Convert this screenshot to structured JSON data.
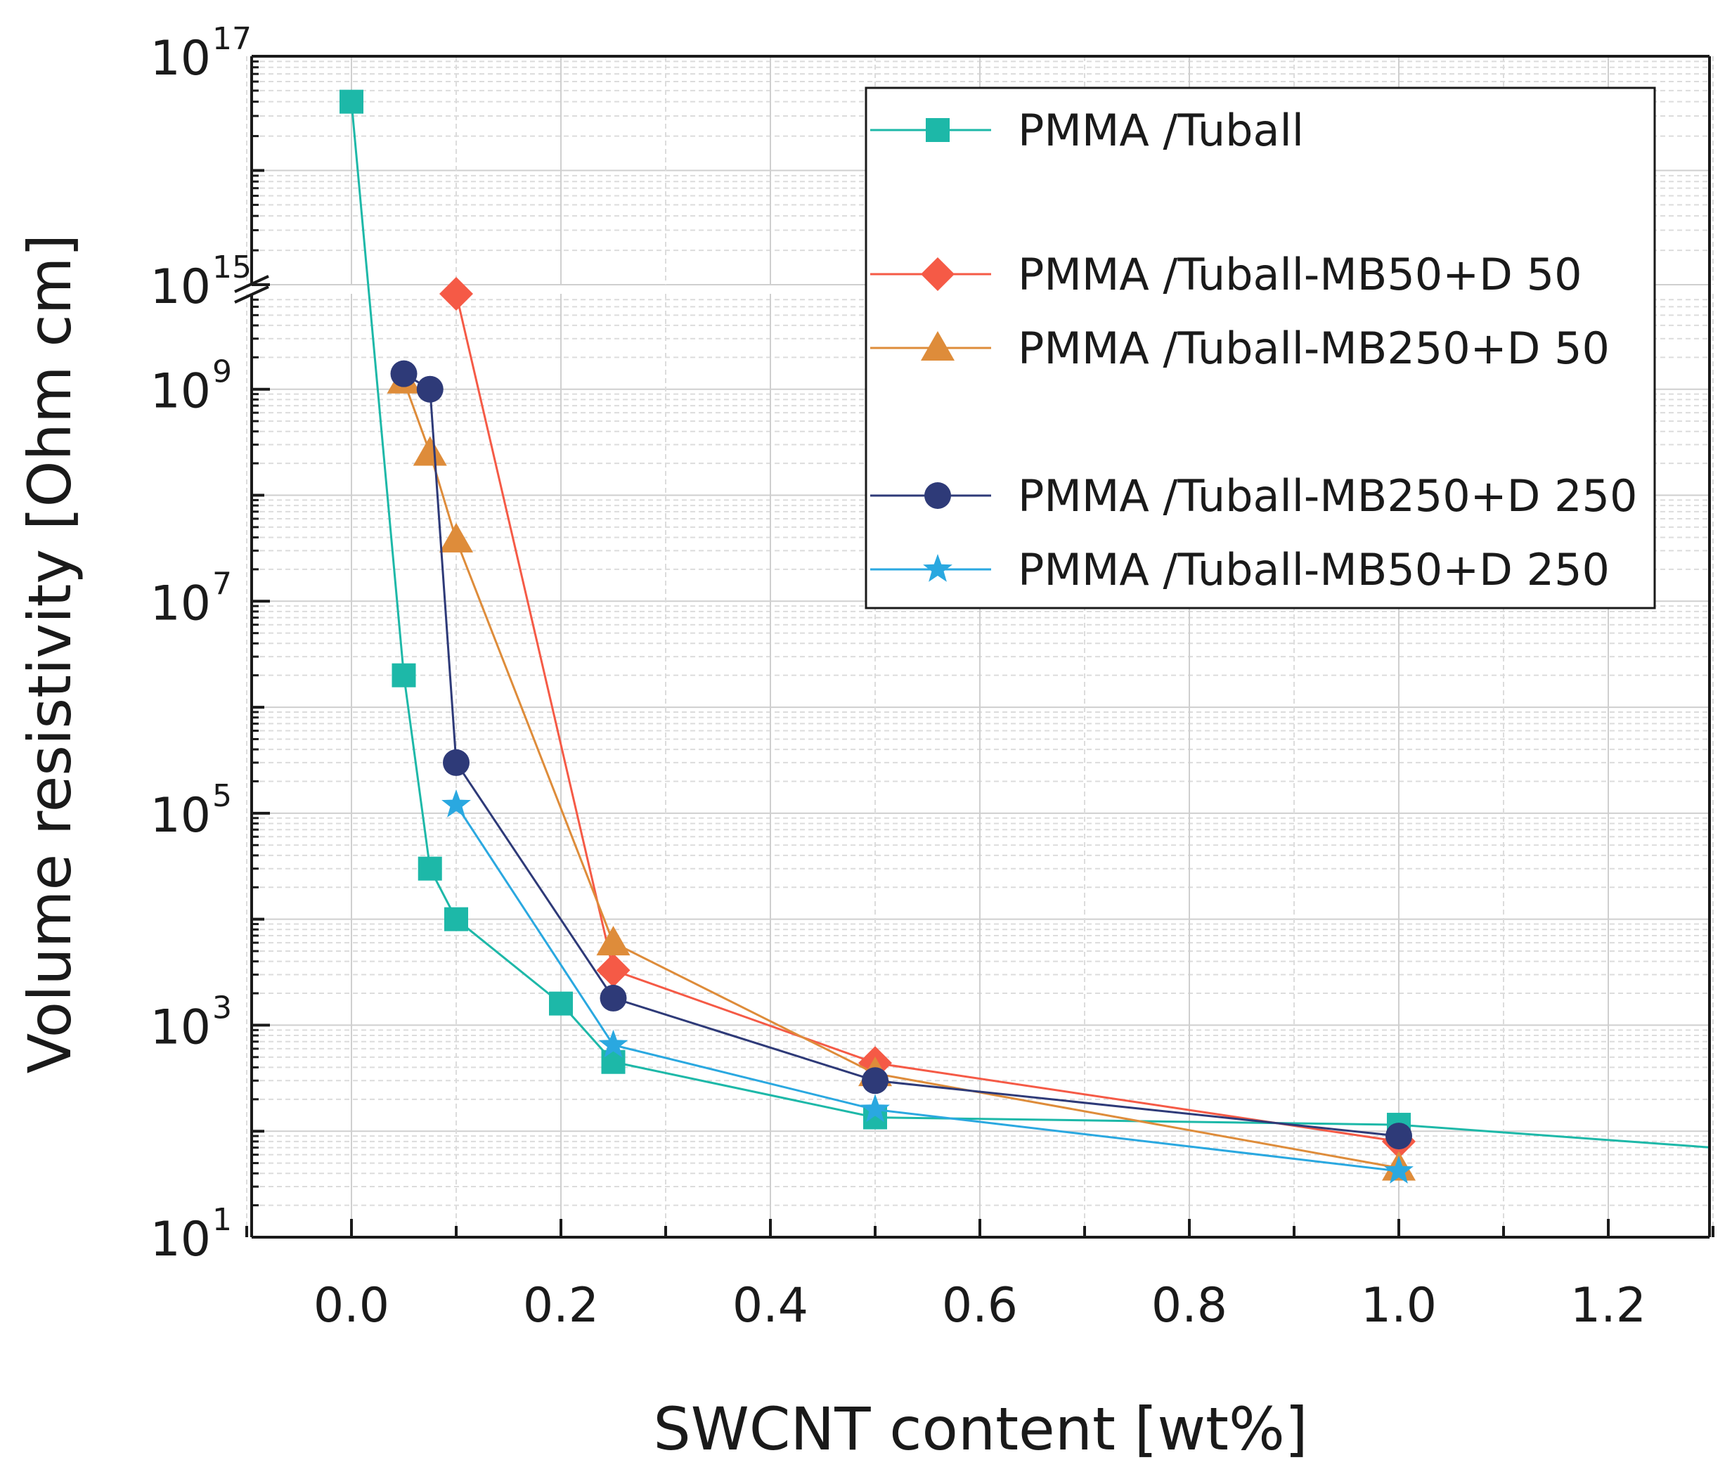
{
  "chart_data": {
    "type": "line",
    "title": "",
    "xlabel": "SWCNT content [wt%]",
    "ylabel": "Volume resistivity [Ohm cm]",
    "yscale": "log",
    "xlim": [
      -0.1,
      1.3
    ],
    "ylim_log10": [
      1,
      17
    ],
    "y_axis_break_log10": [
      14.5,
      15
    ],
    "x_ticks": [
      {
        "value": 0.0,
        "label": "0.0"
      },
      {
        "value": 0.2,
        "label": "0.2"
      },
      {
        "value": 0.4,
        "label": "0.4"
      },
      {
        "value": 0.6,
        "label": "0.6"
      },
      {
        "value": 0.8,
        "label": "0.8"
      },
      {
        "value": 1.0,
        "label": "1.0"
      },
      {
        "value": 1.2,
        "label": "1.2"
      }
    ],
    "y_ticks": [
      {
        "exp": 1,
        "base": "10",
        "sup": "1"
      },
      {
        "exp": 3,
        "base": "10",
        "sup": "3"
      },
      {
        "exp": 5,
        "base": "10",
        "sup": "5"
      },
      {
        "exp": 7,
        "base": "10",
        "sup": "7"
      },
      {
        "exp": 9,
        "base": "10",
        "sup": "9"
      },
      {
        "exp": 15,
        "base": "10",
        "sup": "15"
      },
      {
        "exp": 17,
        "base": "10",
        "sup": "17"
      }
    ],
    "grid": true,
    "legend_position": "top-right",
    "series": [
      {
        "name": "PMMA /Tuball",
        "color": "#1db8a8",
        "marker": "square",
        "x": [
          0.0,
          0.05,
          0.075,
          0.1,
          0.2,
          0.25,
          0.5,
          1.0,
          1.3
        ],
        "y": [
          4e+16,
          2000000.0,
          30000.0,
          10000.0,
          1600.0,
          450.0,
          135.0,
          115.0,
          70.0
        ],
        "marker_count": 8
      },
      {
        "name": "PMMA /Tuball-MB50+D 50",
        "color": "#f55a46",
        "marker": "diamond",
        "x": [
          0.1,
          0.25,
          0.5,
          1.0
        ],
        "y": [
          25000000000.0,
          3300.0,
          440.0,
          80.0
        ]
      },
      {
        "name": "PMMA /Tuball-MB250+D 50",
        "color": "#de8c3a",
        "marker": "triangle",
        "x": [
          0.05,
          0.075,
          0.1,
          0.25,
          0.5,
          1.0
        ],
        "y": [
          1200000000.0,
          250000000.0,
          38000000.0,
          6000.0,
          350.0,
          45.0
        ]
      },
      {
        "name": "PMMA /Tuball-MB250+D 250",
        "color": "#2e3a78",
        "marker": "circle",
        "x": [
          0.05,
          0.075,
          0.1,
          0.25,
          0.5,
          1.0
        ],
        "y": [
          1400000000.0,
          1000000000.0,
          300000.0,
          1800.0,
          300.0,
          90.0
        ]
      },
      {
        "name": "PMMA /Tuball-MB50+D 250",
        "color": "#2aa8e0",
        "marker": "star",
        "x": [
          0.1,
          0.25,
          0.5,
          1.0
        ],
        "y": [
          120000.0,
          650.0,
          160.0,
          42.0
        ]
      }
    ]
  }
}
